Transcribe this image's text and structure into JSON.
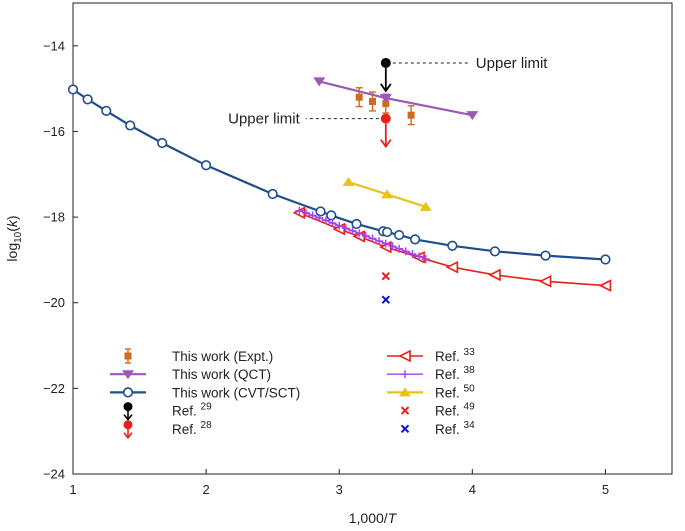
{
  "chart_data": {
    "type": "line",
    "xlabel": "1,000/T",
    "ylabel": "log10(k)",
    "xlim": [
      1,
      5.5
    ],
    "ylim": [
      -24,
      -13
    ],
    "x_ticks": [
      1,
      2,
      3,
      4,
      5
    ],
    "y_ticks": [
      -24,
      -22,
      -20,
      -18,
      -16,
      -14
    ],
    "x_tick_labels": [
      "1",
      "2",
      "3",
      "4",
      "5"
    ],
    "y_tick_labels": [
      "−24",
      "−22",
      "−20",
      "−18",
      "−16",
      "−14"
    ],
    "series": [
      {
        "name": "This work (Expt.)",
        "color": "#D2691E",
        "marker": "square-errorbar",
        "points": [
          {
            "x": 3.15,
            "y": -15.2,
            "err": 0.22
          },
          {
            "x": 3.25,
            "y": -15.3,
            "err": 0.22
          },
          {
            "x": 3.35,
            "y": -15.35,
            "err": 0.22
          },
          {
            "x": 3.54,
            "y": -15.62,
            "err": 0.22
          }
        ]
      },
      {
        "name": "This work (QCT)",
        "color": "#9B59B6",
        "marker": "triangle-down",
        "x": [
          2.85,
          3.35,
          4.0
        ],
        "y": [
          -14.83,
          -15.22,
          -15.62
        ]
      },
      {
        "name": "This work (CVT/SCT)",
        "color": "#1F4E8C",
        "marker": "open-circle",
        "x": [
          1.0,
          1.11,
          1.25,
          1.43,
          1.67,
          2.0,
          2.5,
          2.86,
          2.94,
          3.13,
          3.33,
          3.36,
          3.45,
          3.57,
          3.85,
          4.17,
          4.55,
          5.0
        ],
        "y": [
          -15.02,
          -15.25,
          -15.52,
          -15.86,
          -16.27,
          -16.79,
          -17.46,
          -17.87,
          -17.96,
          -18.16,
          -18.33,
          -18.35,
          -18.42,
          -18.52,
          -18.67,
          -18.8,
          -18.9,
          -18.99
        ]
      },
      {
        "name": "Ref. 29",
        "ref": "29",
        "label": "Ref.",
        "color": "#000000",
        "marker": "dot-arrow",
        "x": [
          3.35
        ],
        "y": [
          -14.4
        ]
      },
      {
        "name": "Ref. 28",
        "ref": "28",
        "label": "Ref.",
        "color": "#E8201A",
        "marker": "dot-arrow",
        "x": [
          3.35
        ],
        "y": [
          -15.7
        ]
      },
      {
        "name": "Ref. 33",
        "ref": "33",
        "label": "Ref.",
        "color": "#E8201A",
        "marker": "triangle-left-open",
        "x": [
          2.7,
          3.0,
          3.15,
          3.35,
          3.6,
          3.85,
          4.17,
          4.55,
          5.0
        ],
        "y": [
          -17.9,
          -18.28,
          -18.45,
          -18.7,
          -18.94,
          -19.17,
          -19.35,
          -19.5,
          -19.6
        ]
      },
      {
        "name": "Ref. 38",
        "ref": "38",
        "label": "Ref.",
        "color": "#A142F4",
        "marker": "plus",
        "x": [
          2.7,
          2.75,
          2.8,
          2.85,
          2.9,
          2.95,
          3.0,
          3.05,
          3.1,
          3.15,
          3.2,
          3.25,
          3.3,
          3.35,
          3.4,
          3.45,
          3.5,
          3.55,
          3.6,
          3.65
        ],
        "y": [
          -17.85,
          -17.9,
          -17.96,
          -18.02,
          -18.08,
          -18.14,
          -18.2,
          -18.26,
          -18.32,
          -18.38,
          -18.44,
          -18.5,
          -18.56,
          -18.62,
          -18.68,
          -18.74,
          -18.8,
          -18.86,
          -18.92,
          -18.98
        ]
      },
      {
        "name": "Ref. 50",
        "ref": "50",
        "label": "Ref.",
        "color": "#E6C21A",
        "marker": "triangle-up",
        "x": [
          3.07,
          3.36,
          3.65
        ],
        "y": [
          -17.18,
          -17.47,
          -17.76
        ]
      },
      {
        "name": "Ref. 49",
        "ref": "49",
        "label": "Ref.",
        "color": "#E8201A",
        "marker": "x",
        "x": [
          3.35
        ],
        "y": [
          -19.38
        ]
      },
      {
        "name": "Ref. 34",
        "ref": "34",
        "label": "Ref.",
        "color": "#1010D0",
        "marker": "x",
        "x": [
          3.35
        ],
        "y": [
          -19.93
        ]
      }
    ],
    "annotations": [
      {
        "text": "Upper limit",
        "x": 3.35,
        "y": -14.4,
        "side": "right"
      },
      {
        "text": "Upper limit",
        "x": 3.35,
        "y": -15.7,
        "side": "left"
      }
    ],
    "legend": {
      "position": "bottom-left",
      "columns": 2
    }
  }
}
